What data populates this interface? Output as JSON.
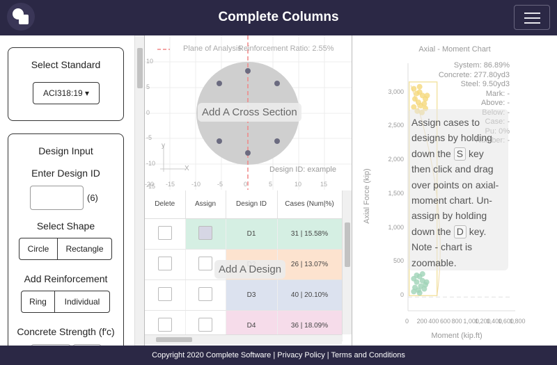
{
  "header": {
    "title": "Complete Columns",
    "logo_icon": "logo-icon",
    "menu_icon": "hamburger-icon"
  },
  "left": {
    "standard": {
      "title": "Select Standard",
      "selected": "ACI318:19 ▾"
    },
    "design": {
      "title": "Design Input",
      "id_label": "Enter Design ID",
      "id_value": "",
      "id_count": "(6)",
      "shape_label": "Select Shape",
      "shapes": [
        "Circle",
        "Rectangle"
      ],
      "reinf_label": "Add Reinforcement",
      "reinf": [
        "Ring",
        "Individual"
      ],
      "concrete_label": "Concrete Strength (f′c)"
    }
  },
  "xsection": {
    "legend": "Plane of Analysis",
    "ratio": "Reinforcement Ratio: 2.55%",
    "add_label": "Add A Cross Section",
    "design_id": "Design ID: example",
    "y_ticks": [
      "10",
      "5",
      "0",
      "-5",
      "-10",
      "-15"
    ],
    "x_ticks": [
      "-20",
      "-15",
      "-10",
      "-5",
      "0",
      "5",
      "10",
      "15"
    ],
    "x_axis": "X",
    "y_axis": "y"
  },
  "table": {
    "headers": [
      "Delete",
      "Assign",
      "Design ID",
      "Cases (Num|%)"
    ],
    "rows": [
      {
        "id": "D1",
        "cases": "31 | 15.58%",
        "color": "#d5efe3",
        "assign_color": "#d6d6e4"
      },
      {
        "id": "D2",
        "cases": "26 | 13.07%",
        "color": "#fde3cf",
        "assign_color": "#ffffff"
      },
      {
        "id": "D3",
        "cases": "40 | 20.10%",
        "color": "#dce2ef",
        "assign_color": "#ffffff"
      },
      {
        "id": "D4",
        "cases": "36 | 18.09%",
        "color": "#f6dcea",
        "assign_color": "#ffffff"
      }
    ],
    "add_label": "Add A Design"
  },
  "chart": {
    "title": "Axial - Moment Chart",
    "ylabel": "Axial Force (kip)",
    "xlabel": "Moment (kip.ft)",
    "y_ticks": [
      "3,000",
      "2,500",
      "2,000",
      "1,500",
      "1,000",
      "500",
      "0"
    ],
    "x_ticks": [
      "0",
      "200",
      "400",
      "600",
      "800",
      "1,000",
      "1,200",
      "1,400",
      "1,600",
      "1,800"
    ],
    "legend": [
      "System: 86.89%",
      "Concrete: 277.80yd3",
      "Steel: 9.50yd3",
      "Mark: -",
      "Above: -",
      "Below: -",
      "Case: -",
      "Pu: 0%",
      "Number: -"
    ],
    "tooltip": [
      "Assign cases to designs by holding down the ",
      "S",
      " key then click and drag over points on axial-moment chart. Un-assign by holding down the ",
      "D",
      " key. Note - chart is zoomable."
    ]
  },
  "chart_data": {
    "type": "scatter",
    "title": "Axial - Moment Chart",
    "xlabel": "Moment (kip.ft)",
    "ylabel": "Axial Force (kip)",
    "xlim": [
      0,
      1800
    ],
    "ylim": [
      -100,
      3200
    ],
    "series": [
      {
        "color": "#f5d87a",
        "points": [
          [
            100,
            3050
          ],
          [
            150,
            2980
          ],
          [
            200,
            3000
          ],
          [
            250,
            2950
          ],
          [
            300,
            2900
          ],
          [
            120,
            2900
          ],
          [
            180,
            2850
          ],
          [
            220,
            2800
          ],
          [
            280,
            2830
          ],
          [
            330,
            2950
          ],
          [
            100,
            2780
          ],
          [
            160,
            2720
          ],
          [
            240,
            2700
          ],
          [
            300,
            2760
          ],
          [
            200,
            3080
          ]
        ]
      },
      {
        "color": "#9fd3b6",
        "points": [
          [
            100,
            250
          ],
          [
            150,
            200
          ],
          [
            200,
            280
          ],
          [
            250,
            220
          ],
          [
            300,
            160
          ],
          [
            120,
            120
          ],
          [
            180,
            80
          ],
          [
            220,
            140
          ],
          [
            280,
            100
          ],
          [
            320,
            200
          ],
          [
            150,
            300
          ],
          [
            250,
            320
          ],
          [
            200,
            40
          ],
          [
            100,
            60
          ]
        ]
      }
    ]
  },
  "footer": {
    "text": "Copyright 2020 Complete Software | Privacy Policy | Terms and Conditions"
  }
}
